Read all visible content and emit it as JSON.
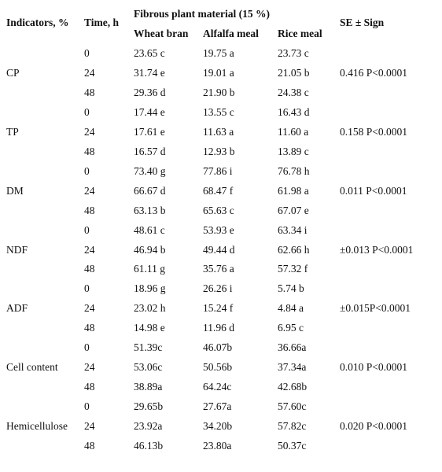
{
  "table": {
    "header": {
      "indicators": "Indicators, %",
      "time": "Time, h",
      "group": "Fibrous plant material (15 %)",
      "columns": [
        "Wheat bran",
        "Alfalfa meal",
        "Rice meal"
      ],
      "se": "SE ± Sign"
    },
    "groups": [
      {
        "indicator": "CP",
        "se": "0.416 P<0.0001",
        "rows": [
          {
            "time": "0",
            "values": [
              "23.65 c",
              "19.75 a",
              "23.73 c"
            ]
          },
          {
            "time": "24",
            "values": [
              "31.74 e",
              "19.01 a",
              "21.05 b"
            ]
          },
          {
            "time": "48",
            "values": [
              "29.36 d",
              "21.90 b",
              "24.38 c"
            ]
          }
        ]
      },
      {
        "indicator": "TP",
        "se": "0.158 P<0.0001",
        "rows": [
          {
            "time": "0",
            "values": [
              "17.44 e",
              "13.55 c",
              "16.43 d"
            ]
          },
          {
            "time": "24",
            "values": [
              "17.61 e",
              "11.63 a",
              "11.60 a"
            ]
          },
          {
            "time": "48",
            "values": [
              "16.57 d",
              "12.93 b",
              "13.89 c"
            ]
          }
        ]
      },
      {
        "indicator": "DM",
        "se": "0.011 P<0.0001",
        "rows": [
          {
            "time": "0",
            "values": [
              "73.40 g",
              "77.86 i",
              "76.78 h"
            ]
          },
          {
            "time": "24",
            "values": [
              "66.67 d",
              "68.47 f",
              "61.98 a"
            ]
          },
          {
            "time": "48",
            "values": [
              "63.13 b",
              "65.63 c",
              "67.07 e"
            ]
          }
        ]
      },
      {
        "indicator": "NDF",
        "se": "±0.013 P<0.0001",
        "rows": [
          {
            "time": "0",
            "values": [
              "48.61 c",
              "53.93 e",
              "63.34 i"
            ]
          },
          {
            "time": "24",
            "values": [
              "46.94 b",
              "49.44 d",
              "62.66 h"
            ]
          },
          {
            "time": "48",
            "values": [
              "61.11 g",
              "35.76 a",
              "57.32 f"
            ]
          }
        ]
      },
      {
        "indicator": "ADF",
        "se": "±0.015P<0.0001",
        "rows": [
          {
            "time": "0",
            "values": [
              "18.96 g",
              "26.26 i",
              "5.74 b"
            ]
          },
          {
            "time": "24",
            "values": [
              "23.02 h",
              "15.24 f",
              "4.84 a"
            ]
          },
          {
            "time": "48",
            "values": [
              "14.98 e",
              "11.96 d",
              "6.95 c"
            ]
          }
        ]
      },
      {
        "indicator": "Cell content",
        "se": "0.010 P<0.0001",
        "rows": [
          {
            "time": "0",
            "values": [
              "51.39c",
              "46.07b",
              "36.66a"
            ]
          },
          {
            "time": "24",
            "values": [
              "53.06c",
              "50.56b",
              "37.34a"
            ]
          },
          {
            "time": "48",
            "values": [
              "38.89a",
              "64.24c",
              "42.68b"
            ]
          }
        ]
      },
      {
        "indicator": "Hemicellulose",
        "se": "0.020 P<0.0001",
        "rows": [
          {
            "time": "0",
            "values": [
              "29.65b",
              "27.67a",
              "57.60c"
            ]
          },
          {
            "time": "24",
            "values": [
              "23.92a",
              "34.20b",
              "57.82c"
            ]
          },
          {
            "time": "48",
            "values": [
              "46.13b",
              "23.80a",
              "50.37c"
            ]
          }
        ]
      }
    ]
  }
}
